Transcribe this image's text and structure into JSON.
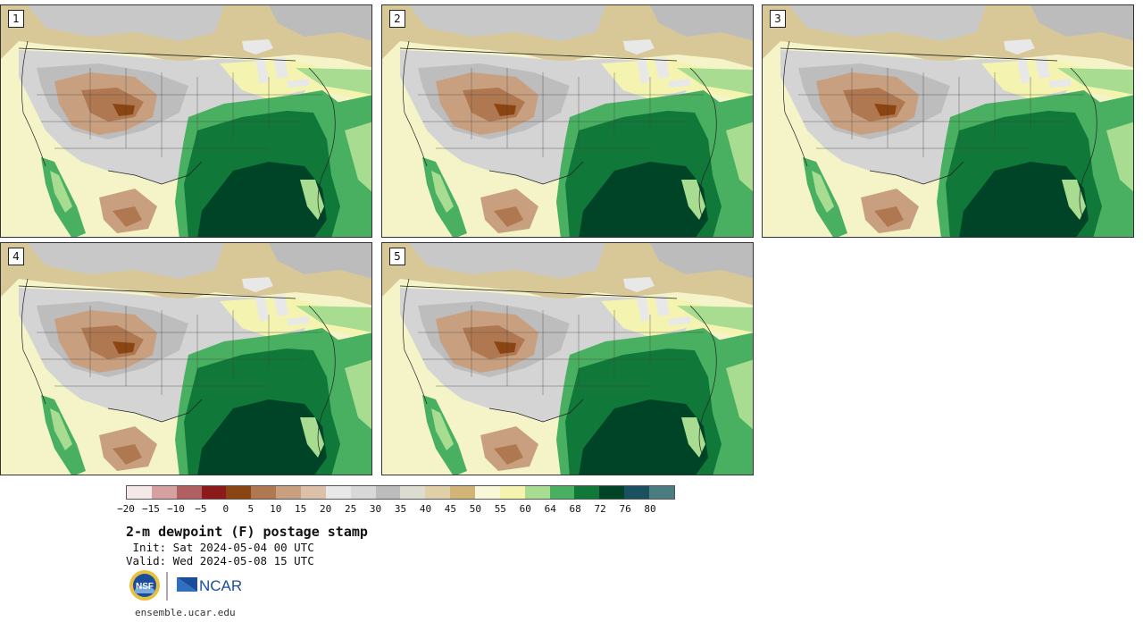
{
  "panels": [
    {
      "label": "1"
    },
    {
      "label": "2"
    },
    {
      "label": "3"
    },
    {
      "label": "4"
    },
    {
      "label": "5"
    }
  ],
  "colorbar": {
    "colors": [
      "#f5e8e8",
      "#d4a0a0",
      "#b06060",
      "#8c1a1a",
      "#8b4513",
      "#b07850",
      "#c8a080",
      "#dcc0a8",
      "#e8e8e8",
      "#d8d8d8",
      "#bcbcbc",
      "#dcdcd0",
      "#e0d0a8",
      "#d0b478",
      "#f8f8d8",
      "#f4f4b0",
      "#a8dc90",
      "#48b060",
      "#107838",
      "#004428",
      "#1a5060",
      "#4a7c80"
    ],
    "tick_labels": [
      "−20",
      "−15",
      "−10",
      "−5",
      "0",
      "5",
      "10",
      "15",
      "20",
      "25",
      "30",
      "35",
      "40",
      "45",
      "50",
      "55",
      "60",
      "64",
      "68",
      "72",
      "76",
      "80"
    ]
  },
  "title": "2-m dewpoint (F) postage stamp",
  "init_text": " Init: Sat 2024-05-04 00 UTC",
  "valid_text": "Valid: Wed 2024-05-08 15 UTC",
  "logos": {
    "nsf": "NSF",
    "ncar": "NCAR"
  },
  "url": "ensemble.ucar.edu"
}
